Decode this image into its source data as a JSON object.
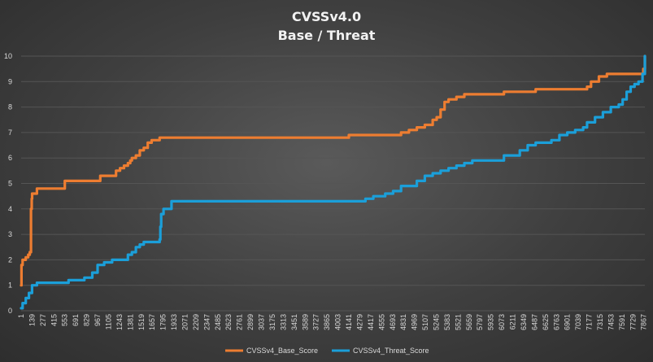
{
  "chart_data": {
    "type": "line",
    "title": "CVSSv4.0",
    "subtitle": "Base / Threat",
    "xlabel": "",
    "ylabel": "",
    "ylim": [
      0,
      10
    ],
    "yticks": [
      0,
      1,
      2,
      3,
      4,
      5,
      6,
      7,
      8,
      9,
      10
    ],
    "xlim": [
      1,
      7880
    ],
    "xticks": [
      1,
      139,
      277,
      415,
      553,
      691,
      829,
      967,
      1105,
      1243,
      1381,
      1519,
      1657,
      1795,
      1933,
      2071,
      2209,
      2347,
      2485,
      2623,
      2761,
      2899,
      3037,
      3175,
      3313,
      3451,
      3589,
      3727,
      3865,
      4003,
      4141,
      4279,
      4417,
      4555,
      4693,
      4831,
      4969,
      5107,
      5245,
      5383,
      5521,
      5659,
      5797,
      5935,
      6073,
      6211,
      6349,
      6487,
      6625,
      6763,
      6901,
      7039,
      7177,
      7315,
      7453,
      7591,
      7729,
      7867
    ],
    "grid": true,
    "legend": "bottom",
    "series": [
      {
        "name": "CVSSv4_Base_Score",
        "color": "#ED7D31",
        "x": [
          1,
          5,
          20,
          60,
          90,
          110,
          125,
          135,
          140,
          170,
          200,
          250,
          300,
          553,
          700,
          830,
          1000,
          1150,
          1200,
          1250,
          1300,
          1350,
          1380,
          1400,
          1450,
          1500,
          1550,
          1600,
          1650,
          1700,
          1750,
          1800,
          2500,
          3500,
          4000,
          4141,
          4700,
          4800,
          4900,
          5000,
          5100,
          5200,
          5250,
          5300,
          5350,
          5400,
          5500,
          5600,
          5800,
          6100,
          6500,
          7000,
          7150,
          7200,
          7300,
          7400,
          7500,
          7600,
          7700,
          7800,
          7860,
          7880
        ],
        "y": [
          1.0,
          1.8,
          2.0,
          2.1,
          2.2,
          2.3,
          4.0,
          4.4,
          4.6,
          4.6,
          4.8,
          4.8,
          4.8,
          5.1,
          5.1,
          5.1,
          5.3,
          5.3,
          5.5,
          5.6,
          5.7,
          5.8,
          5.9,
          6.0,
          6.1,
          6.3,
          6.4,
          6.6,
          6.7,
          6.7,
          6.8,
          6.8,
          6.8,
          6.8,
          6.8,
          6.9,
          6.9,
          7.0,
          7.1,
          7.2,
          7.3,
          7.5,
          7.6,
          7.9,
          8.2,
          8.3,
          8.4,
          8.5,
          8.5,
          8.6,
          8.7,
          8.7,
          8.8,
          9.0,
          9.2,
          9.3,
          9.3,
          9.3,
          9.3,
          9.3,
          9.5,
          10.0
        ]
      },
      {
        "name": "CVSSv4_Threat_Score",
        "color": "#1B9FD9",
        "x": [
          1,
          20,
          60,
          100,
          139,
          200,
          400,
          600,
          691,
          800,
          900,
          967,
          1050,
          1150,
          1250,
          1350,
          1400,
          1450,
          1500,
          1550,
          1650,
          1700,
          1750,
          1760,
          1770,
          1800,
          1900,
          2000,
          2500,
          3500,
          4000,
          4279,
          4350,
          4450,
          4600,
          4700,
          4800,
          5000,
          5100,
          5200,
          5300,
          5400,
          5500,
          5600,
          5700,
          5900,
          6100,
          6300,
          6400,
          6500,
          6700,
          6800,
          6900,
          7000,
          7100,
          7150,
          7250,
          7350,
          7450,
          7550,
          7600,
          7650,
          7700,
          7750,
          7800,
          7850,
          7880
        ],
        "y": [
          0.1,
          0.3,
          0.5,
          0.7,
          1.0,
          1.1,
          1.1,
          1.2,
          1.2,
          1.3,
          1.5,
          1.8,
          1.9,
          2.0,
          2.0,
          2.2,
          2.3,
          2.5,
          2.6,
          2.7,
          2.7,
          2.7,
          2.8,
          3.3,
          3.8,
          4.0,
          4.3,
          4.3,
          4.3,
          4.3,
          4.3,
          4.3,
          4.4,
          4.5,
          4.6,
          4.7,
          4.9,
          5.1,
          5.3,
          5.4,
          5.5,
          5.6,
          5.7,
          5.8,
          5.9,
          5.9,
          6.1,
          6.3,
          6.5,
          6.6,
          6.7,
          6.9,
          7.0,
          7.1,
          7.2,
          7.4,
          7.6,
          7.8,
          8.0,
          8.1,
          8.3,
          8.6,
          8.8,
          8.9,
          9.0,
          9.3,
          10.0
        ]
      }
    ]
  }
}
